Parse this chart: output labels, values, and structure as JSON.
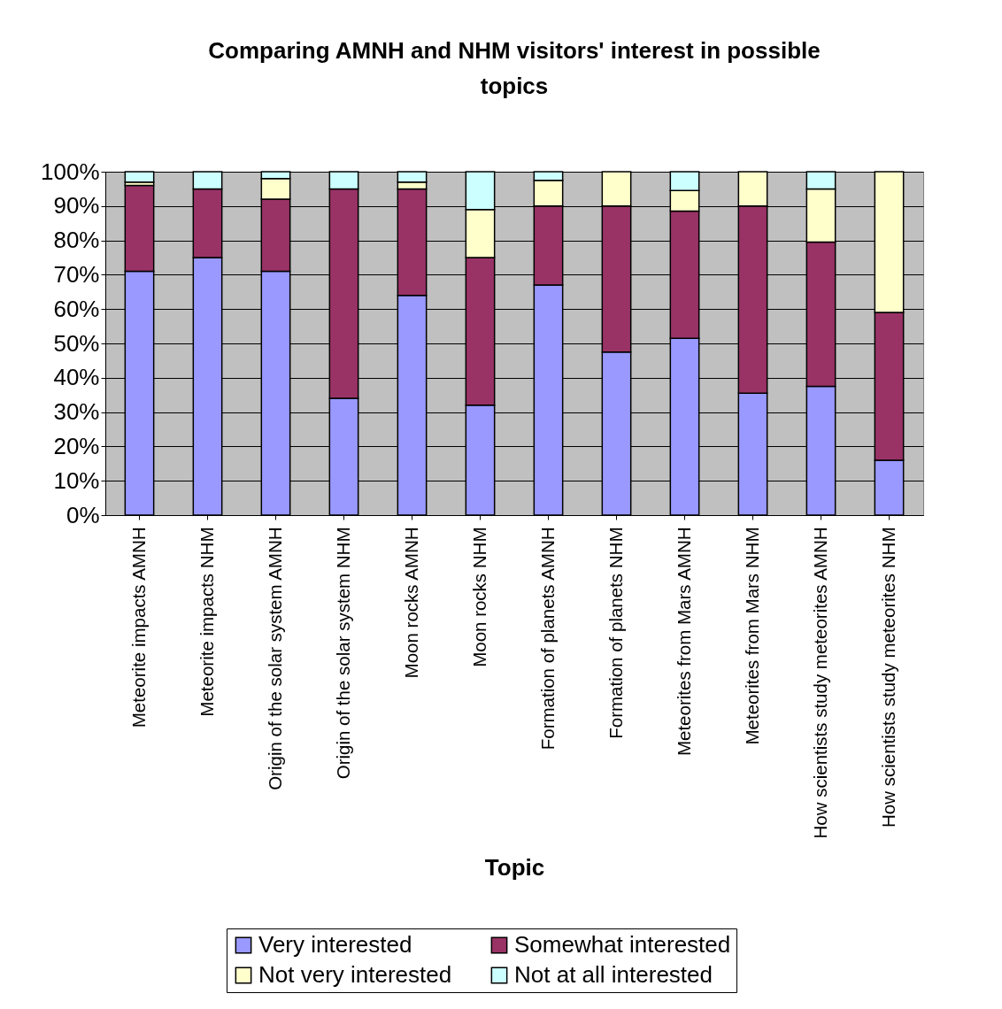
{
  "chart_data": {
    "type": "bar",
    "title": "Comparing AMNH and NHM visitors' interest in possible topics",
    "xlabel": "Topic",
    "stacked": true,
    "legend": "bottom",
    "grid": "y",
    "categories": [
      "Meteorite impacts AMNH",
      "Meteorite impacts NHM",
      "Origin of the solar system AMNH",
      "Origin of the solar system NHM",
      "Moon rocks AMNH",
      "Moon rocks NHM",
      "Formation of planets AMNH",
      "Formation of planets NHM",
      "Meteorites from Mars AMNH",
      "Meteorites from Mars NHM",
      "How scientists study meteorites AMNH",
      "How scientists study meteorites NHM"
    ],
    "series": [
      {
        "name": "Very interested",
        "color": "#9999ff",
        "values": [
          71,
          75,
          71,
          34,
          64,
          32,
          67,
          47.5,
          51.5,
          35.5,
          37.5,
          16
        ]
      },
      {
        "name": "Somewhat interested",
        "color": "#993366",
        "values": [
          25,
          20,
          21,
          61,
          31,
          43,
          23,
          42.5,
          37,
          54.5,
          42,
          43
        ]
      },
      {
        "name": "Not very interested",
        "color": "#ffffcc",
        "values": [
          1,
          0,
          6,
          0,
          2,
          14,
          7.5,
          10,
          6,
          10,
          15.5,
          41
        ]
      },
      {
        "name": "Not at all interested",
        "color": "#ccffff",
        "values": [
          3,
          5,
          2,
          5,
          3,
          11,
          2.5,
          0,
          5.5,
          0,
          5,
          0
        ]
      }
    ],
    "ylim": [
      0,
      100
    ],
    "yticks": [
      {
        "value": 0,
        "label": "0%"
      },
      {
        "value": 10,
        "label": "10%"
      },
      {
        "value": 20,
        "label": "20%"
      },
      {
        "value": 30,
        "label": "30%"
      },
      {
        "value": 40,
        "label": "40%"
      },
      {
        "value": 50,
        "label": "50%"
      },
      {
        "value": 60,
        "label": "60%"
      },
      {
        "value": 70,
        "label": "70%"
      },
      {
        "value": 80,
        "label": "80%"
      },
      {
        "value": 90,
        "label": "90%"
      },
      {
        "value": 100,
        "label": "100%"
      }
    ]
  }
}
